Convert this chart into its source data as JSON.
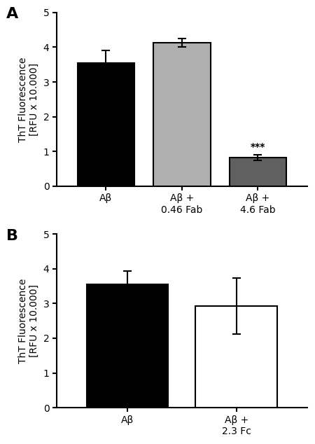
{
  "panel_A": {
    "categories": [
      "Aβ",
      "Aβ +\n0.46 Fab",
      "Aβ +\n4.6 Fab"
    ],
    "values": [
      3.55,
      4.13,
      0.82
    ],
    "errors": [
      0.35,
      0.12,
      0.08
    ],
    "colors": [
      "#000000",
      "#b0b0b0",
      "#606060"
    ],
    "edgecolors": [
      "#000000",
      "#000000",
      "#000000"
    ],
    "label": "A",
    "ylabel": "ThT Fluorescence\n[RFU x 10.000]",
    "ylim": [
      0,
      5
    ],
    "yticks": [
      0,
      1,
      2,
      3,
      4,
      5
    ],
    "significance": {
      "bar_index": 2,
      "text": "***"
    }
  },
  "panel_B": {
    "categories": [
      "Aβ",
      "Aβ +\n2.3 Fc"
    ],
    "values": [
      3.55,
      2.93
    ],
    "errors": [
      0.38,
      0.8
    ],
    "colors": [
      "#000000",
      "#ffffff"
    ],
    "edgecolors": [
      "#000000",
      "#000000"
    ],
    "label": "B",
    "ylabel": "ThT Fluorescence\n[RFU x 10.000]",
    "ylim": [
      0,
      5
    ],
    "yticks": [
      0,
      1,
      2,
      3,
      4,
      5
    ]
  }
}
